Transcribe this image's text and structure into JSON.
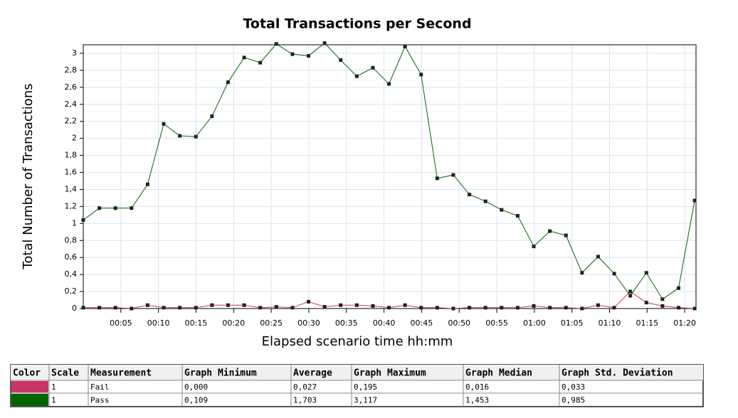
{
  "chart_data": {
    "type": "line",
    "title": "Total Transactions per Second",
    "x_label": "Elapsed scenario time hh:mm",
    "y_label": "Total Number of Transactions",
    "x": [
      0,
      2.14,
      4.28,
      6.42,
      8.56,
      10.7,
      12.84,
      14.98,
      17.12,
      19.26,
      21.4,
      23.54,
      25.68,
      27.82,
      29.96,
      32.1,
      34.24,
      36.38,
      38.52,
      40.66,
      42.8,
      44.94,
      47.08,
      49.22,
      51.36,
      53.5,
      55.64,
      57.78,
      59.92,
      62.06,
      64.2,
      66.34,
      68.48,
      70.62,
      72.76,
      74.9,
      77.04,
      79.18,
      81.32
    ],
    "series": [
      {
        "name": "Fail",
        "color": "#cc3366",
        "values": [
          0.01,
          0.01,
          0.01,
          0.0,
          0.04,
          0.01,
          0.01,
          0.01,
          0.04,
          0.04,
          0.04,
          0.01,
          0.02,
          0.01,
          0.08,
          0.02,
          0.04,
          0.04,
          0.03,
          0.01,
          0.04,
          0.01,
          0.01,
          0.0,
          0.01,
          0.01,
          0.01,
          0.01,
          0.03,
          0.01,
          0.01,
          0.0,
          0.04,
          0.01,
          0.2,
          0.07,
          0.03,
          0.01,
          0.0
        ]
      },
      {
        "name": "Pass",
        "color": "#006400",
        "values": [
          1.04,
          1.18,
          1.18,
          1.18,
          1.46,
          2.17,
          2.03,
          2.02,
          2.26,
          2.66,
          2.95,
          2.89,
          3.11,
          2.99,
          2.97,
          3.12,
          2.92,
          2.73,
          2.83,
          2.64,
          3.08,
          2.75,
          1.53,
          1.57,
          1.34,
          1.26,
          1.16,
          1.09,
          0.73,
          0.91,
          0.86,
          0.42,
          0.61,
          0.41,
          0.15,
          0.42,
          0.11,
          0.24,
          1.27
        ]
      }
    ],
    "xlim": [
      0,
      81.5
    ],
    "xticks": [
      {
        "value": 5,
        "label": "00:05"
      },
      {
        "value": 10,
        "label": "00:10"
      },
      {
        "value": 15,
        "label": "00:15"
      },
      {
        "value": 20,
        "label": "00:20"
      },
      {
        "value": 25,
        "label": "00:25"
      },
      {
        "value": 30,
        "label": "00:30"
      },
      {
        "value": 35,
        "label": "00:35"
      },
      {
        "value": 40,
        "label": "00:40"
      },
      {
        "value": 45,
        "label": "00:45"
      },
      {
        "value": 50,
        "label": "00:50"
      },
      {
        "value": 55,
        "label": "00:55"
      },
      {
        "value": 60,
        "label": "01:00"
      },
      {
        "value": 65,
        "label": "01:05"
      },
      {
        "value": 70,
        "label": "01:10"
      },
      {
        "value": 75,
        "label": "01:15"
      },
      {
        "value": 80,
        "label": "01:20"
      }
    ],
    "ylim": [
      0,
      3.1
    ],
    "yticks": [
      0,
      {
        "value": 0.2,
        "label": "0,2"
      },
      {
        "value": 0.4,
        "label": "0,4"
      },
      {
        "value": 0.6,
        "label": "0,6"
      },
      {
        "value": 0.8,
        "label": "0,8"
      },
      1,
      {
        "value": 1.2,
        "label": "1,2"
      },
      {
        "value": 1.4,
        "label": "1,4"
      },
      {
        "value": 1.6,
        "label": "1,6"
      },
      {
        "value": 1.8,
        "label": "1,8"
      },
      2,
      {
        "value": 2.2,
        "label": "2,2"
      },
      {
        "value": 2.4,
        "label": "2,4"
      },
      {
        "value": 2.6,
        "label": "2,6"
      },
      {
        "value": 2.8,
        "label": "2,8"
      },
      3
    ],
    "grid": true
  },
  "table": {
    "header": [
      "Color",
      "Scale",
      "Measurement",
      "Graph Minimum",
      "Average",
      "Graph Maximum",
      "Graph Median",
      "Graph Std. Deviation"
    ],
    "rows": [
      [
        "1",
        "Fail",
        "0,000",
        "0,027",
        "0,195",
        "0,016",
        "0,033"
      ],
      [
        "1",
        "Pass",
        "0,109",
        "1,703",
        "3,117",
        "1,453",
        "0,985"
      ]
    ]
  }
}
